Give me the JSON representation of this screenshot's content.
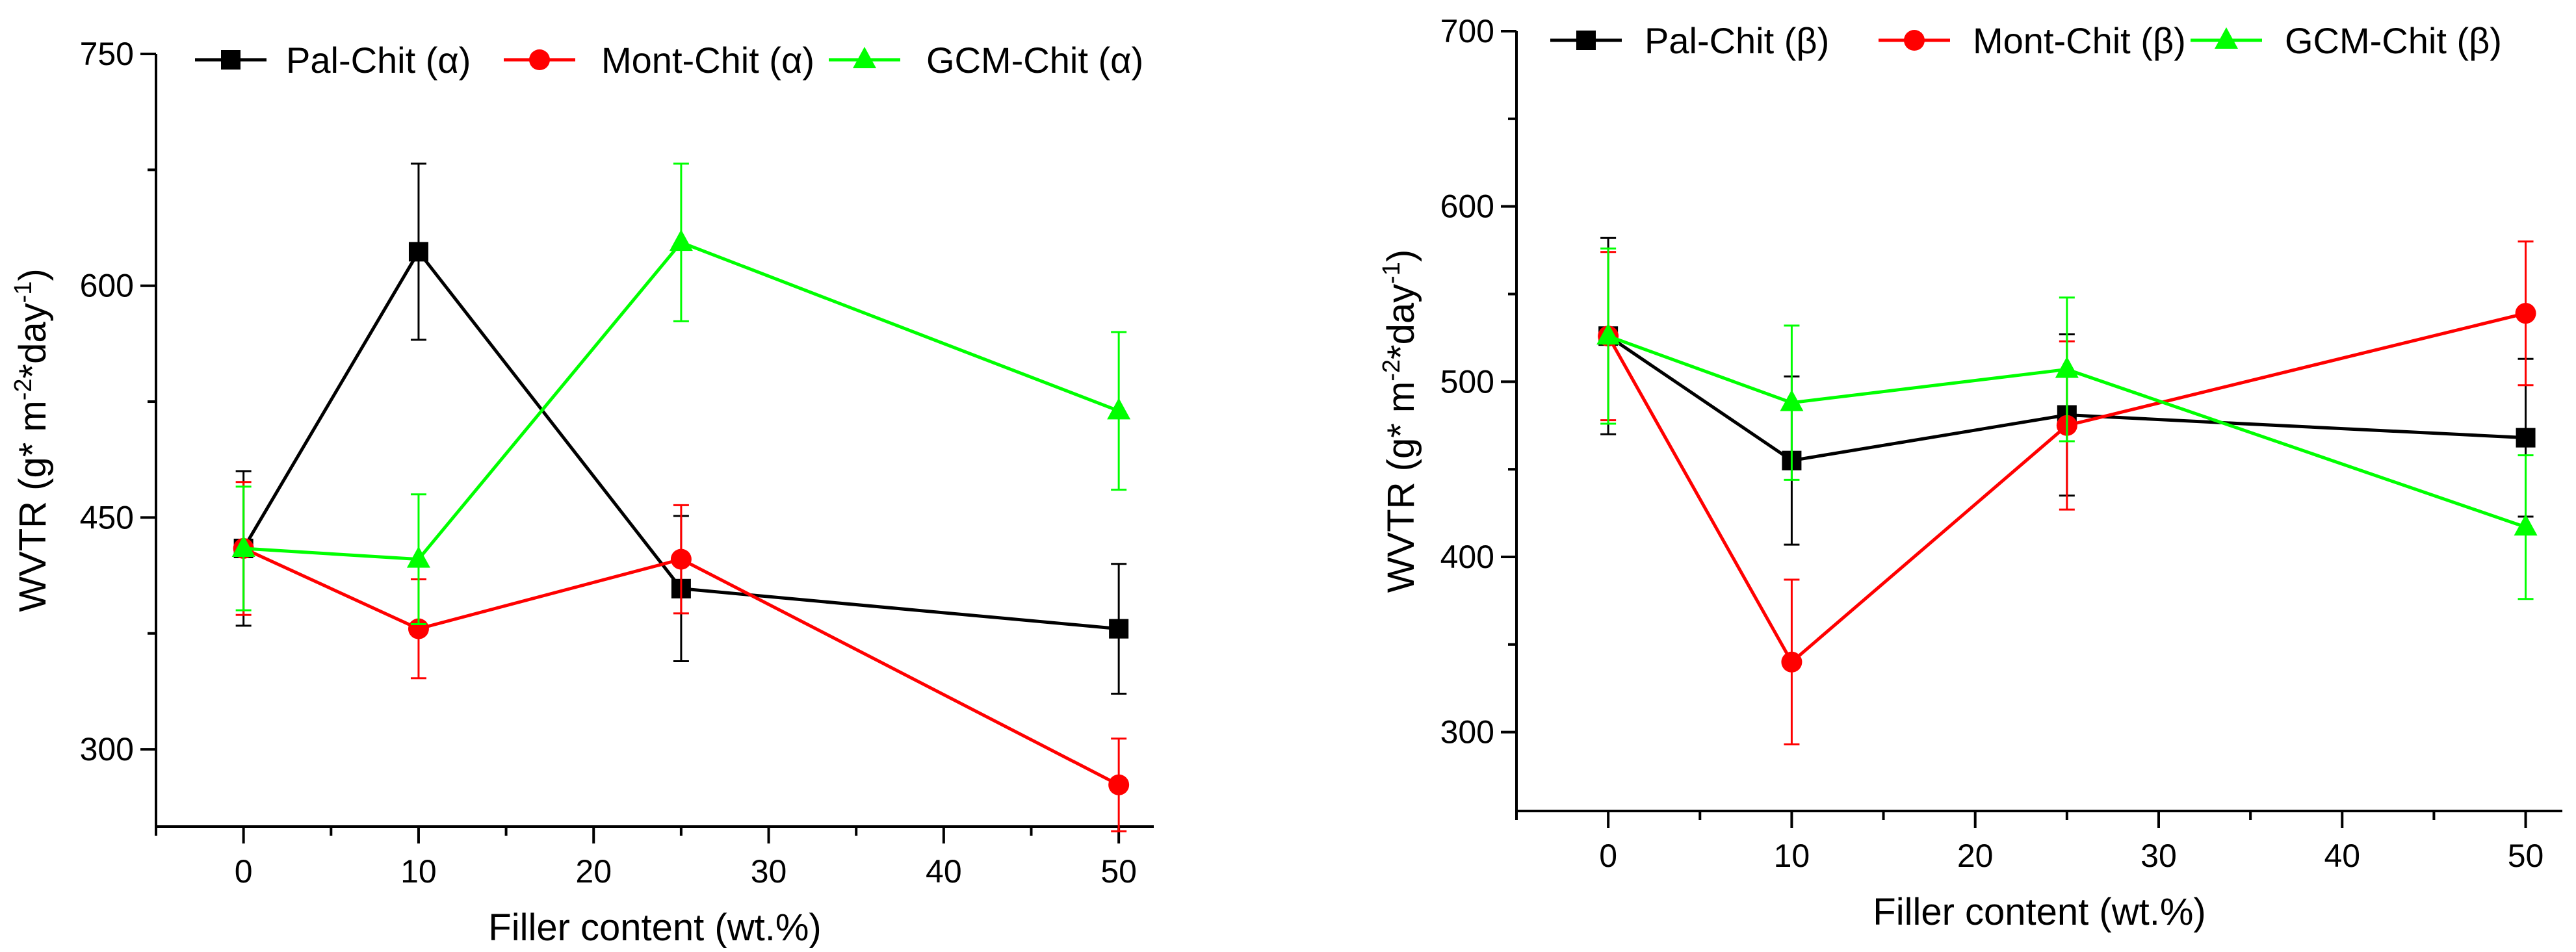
{
  "chart_data": [
    {
      "type": "line",
      "panel": "alpha",
      "xlabel": "Filler content (wt.%)",
      "ylabel": "WVTR (g* m",
      "ylabel_sup1": "-2",
      "ylabel_mid": "*day",
      "ylabel_sup2": "-1",
      "ylabel_end": ")",
      "xlim": [
        -5,
        52
      ],
      "ylim": [
        250,
        750
      ],
      "xticks": [
        0,
        10,
        20,
        30,
        40,
        50
      ],
      "yticks": [
        300,
        450,
        600,
        750
      ],
      "legend_position": "top",
      "series": [
        {
          "name": "Pal-Chit",
          "suffix": " (α)",
          "color": "#000000",
          "marker": "square",
          "x": [
            0,
            10,
            25,
            50
          ],
          "y": [
            430,
            622,
            404,
            378
          ],
          "err": [
            50,
            57,
            47,
            42
          ]
        },
        {
          "name": "Mont-Chit",
          "suffix": " (α)",
          "color": "#ff0000",
          "marker": "circle",
          "x": [
            0,
            10,
            25,
            50
          ],
          "y": [
            430,
            378,
            423,
            277
          ],
          "err": [
            43,
            32,
            35,
            30
          ]
        },
        {
          "name": "GCM-Chit",
          "suffix": " (α)",
          "color": "#00ff00",
          "marker": "triangle",
          "x": [
            0,
            10,
            25,
            50
          ],
          "y": [
            430,
            423,
            628,
            519
          ],
          "err": [
            40,
            42,
            51,
            51
          ]
        }
      ]
    },
    {
      "type": "line",
      "panel": "beta",
      "xlabel": "Filler content (wt.%)",
      "ylabel": "WVTR (g* m",
      "ylabel_sup1": "-2",
      "ylabel_mid": "*day",
      "ylabel_sup2": "-1",
      "ylabel_end": ")",
      "xlim": [
        -5,
        52
      ],
      "ylim": [
        255,
        700
      ],
      "xticks": [
        0,
        10,
        20,
        30,
        40,
        50
      ],
      "yticks": [
        300,
        400,
        500,
        600,
        700
      ],
      "legend_position": "top",
      "series": [
        {
          "name": "Pal-Chit",
          "suffix": "  (β)",
          "color": "#000000",
          "marker": "square",
          "x": [
            0,
            10,
            25,
            50
          ],
          "y": [
            526,
            455,
            481,
            468
          ],
          "err": [
            56,
            48,
            46,
            45
          ]
        },
        {
          "name": "Mont-Chit",
          "suffix": " (β)",
          "color": "#ff0000",
          "marker": "circle",
          "x": [
            0,
            10,
            25,
            50
          ],
          "y": [
            526,
            340,
            475,
            539
          ],
          "err": [
            48,
            47,
            48,
            41
          ]
        },
        {
          "name": "GCM-Chit",
          "suffix": " (β)",
          "color": "#00ff00",
          "marker": "triangle",
          "x": [
            0,
            10,
            25,
            50
          ],
          "y": [
            526,
            488,
            507,
            417
          ],
          "err": [
            50,
            44,
            41,
            41
          ]
        }
      ]
    }
  ]
}
